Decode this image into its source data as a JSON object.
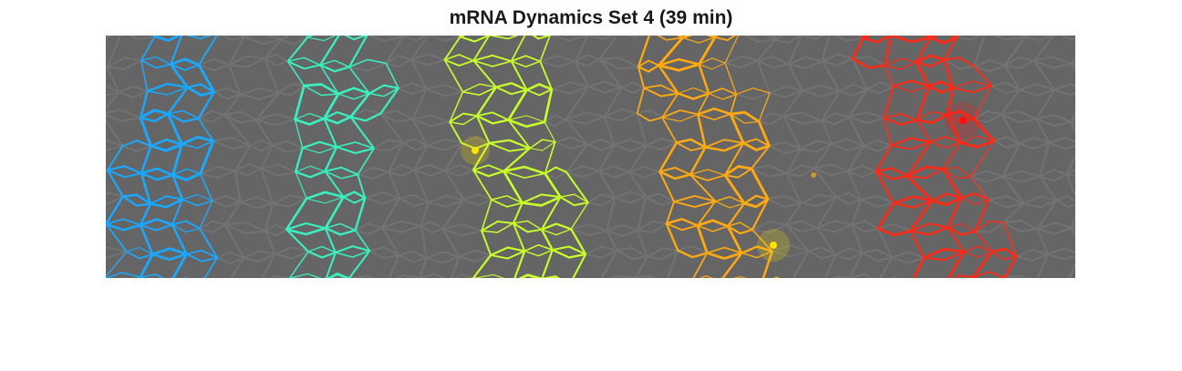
{
  "figure": {
    "title": "mRNA Dynamics Set 4 (39 min)"
  },
  "colors": {
    "background": "#ffffff",
    "tissue": "#656565",
    "cell_edge": "#727272",
    "stripe_1": "#1aa8ff",
    "stripe_2": "#39f0c0",
    "stripe_3": "#c8ff2a",
    "stripe_4": "#ffaa12",
    "stripe_5": "#ff2a16",
    "spot_yellow": "#ffe200",
    "spot_red": "#ff1010"
  },
  "stripes": [
    {
      "id": 1,
      "color": "#1aa8ff"
    },
    {
      "id": 2,
      "color": "#39f0c0"
    },
    {
      "id": 3,
      "color": "#c8ff2a"
    },
    {
      "id": 4,
      "color": "#ffaa12"
    },
    {
      "id": 5,
      "color": "#ff2a16"
    }
  ]
}
